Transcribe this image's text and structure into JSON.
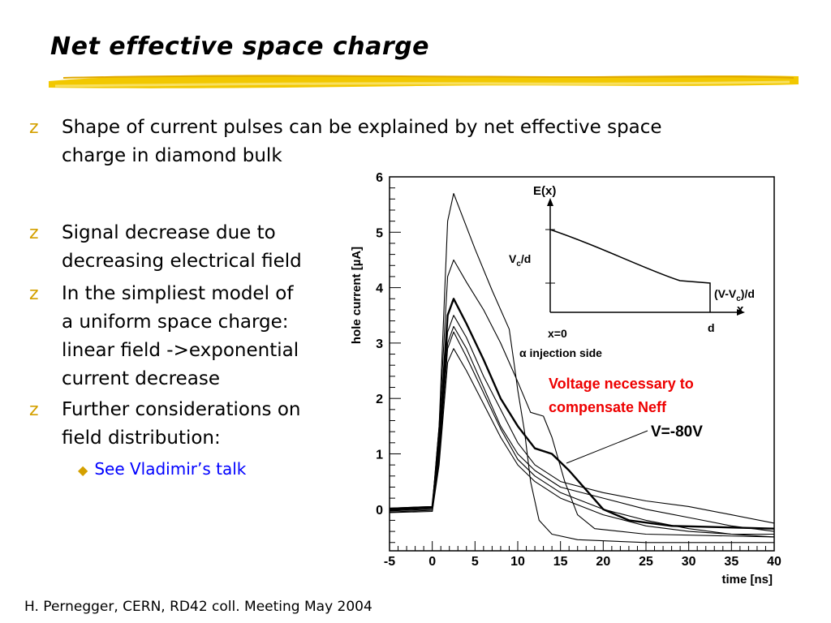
{
  "slide": {
    "title": "Net effective space charge",
    "footer": "H. Pernegger, CERN, RD42 coll. Meeting May 2004",
    "bullets": [
      {
        "lines": [
          "Shape of current pulses can be explained by net effective space",
          "charge in diamond bulk"
        ]
      },
      {
        "lines": [
          "Signal decrease due to",
          "decreasing electrical field"
        ]
      },
      {
        "lines": [
          "In the simpliest model of",
          "a uniform space charge:",
          "linear field ->exponential",
          "current decrease"
        ]
      },
      {
        "lines": [
          "Further considerations on",
          "field distribution:"
        ]
      }
    ],
    "sub_bullet": "See Vladimir’s talk",
    "bullet_glyph": "z",
    "accent_color": "#d4a000",
    "link_color": "#0000ff"
  },
  "chart_data": {
    "type": "line",
    "xlabel": "time [ns]",
    "ylabel": "hole current [µA]",
    "xlim": [
      -5,
      40
    ],
    "ylim": [
      -0.75,
      6
    ],
    "xticks": [
      "-5",
      "0",
      "5",
      "10",
      "15",
      "20",
      "25",
      "30",
      "35",
      "40"
    ],
    "yticks": [
      "0",
      "1",
      "2",
      "3",
      "4",
      "5",
      "6"
    ],
    "series": [
      {
        "values": [
          [
            -5,
            0.02
          ],
          [
            0,
            0.05
          ],
          [
            0.8,
            1.5
          ],
          [
            1.8,
            5.2
          ],
          [
            2.5,
            5.7
          ],
          [
            3.5,
            5.3
          ],
          [
            5,
            4.7
          ],
          [
            7,
            3.95
          ],
          [
            9,
            3.25
          ],
          [
            9.6,
            2.6
          ],
          [
            10,
            2.15
          ],
          [
            10.8,
            1.4
          ],
          [
            11.5,
            0.5
          ],
          [
            12.5,
            -0.2
          ],
          [
            14,
            -0.45
          ],
          [
            17,
            -0.55
          ],
          [
            25,
            -0.6
          ],
          [
            40,
            -0.6
          ]
        ]
      },
      {
        "values": [
          [
            -5,
            0.02
          ],
          [
            0,
            0.05
          ],
          [
            0.8,
            1.5
          ],
          [
            1.8,
            4.2
          ],
          [
            2.5,
            4.5
          ],
          [
            4,
            4.1
          ],
          [
            6,
            3.6
          ],
          [
            8,
            3.0
          ],
          [
            10,
            2.3
          ],
          [
            11.5,
            1.75
          ],
          [
            13,
            1.68
          ],
          [
            14,
            1.3
          ],
          [
            15.5,
            0.5
          ],
          [
            17,
            -0.1
          ],
          [
            19,
            -0.35
          ],
          [
            25,
            -0.45
          ],
          [
            40,
            -0.5
          ]
        ]
      },
      {
        "values": [
          [
            -5,
            0.0
          ],
          [
            0,
            0.03
          ],
          [
            0.8,
            1.2
          ],
          [
            1.8,
            3.5
          ],
          [
            2.5,
            3.8
          ],
          [
            4,
            3.35
          ],
          [
            6,
            2.7
          ],
          [
            8,
            2.0
          ],
          [
            10,
            1.5
          ],
          [
            12,
            1.1
          ],
          [
            14,
            1.0
          ],
          [
            16,
            0.7
          ],
          [
            18,
            0.35
          ],
          [
            20,
            0.0
          ],
          [
            23,
            -0.2
          ],
          [
            28,
            -0.3
          ],
          [
            40,
            -0.35
          ]
        ]
      },
      {
        "values": [
          [
            -5,
            -0.02
          ],
          [
            0,
            0.02
          ],
          [
            0.8,
            1.1
          ],
          [
            1.8,
            3.2
          ],
          [
            2.5,
            3.5
          ],
          [
            4,
            3.1
          ],
          [
            6,
            2.4
          ],
          [
            8,
            1.8
          ],
          [
            10,
            1.2
          ],
          [
            12,
            0.8
          ],
          [
            15,
            0.5
          ],
          [
            20,
            0.3
          ],
          [
            25,
            0.15
          ],
          [
            30,
            0.05
          ],
          [
            35,
            -0.1
          ],
          [
            40,
            -0.25
          ]
        ]
      },
      {
        "values": [
          [
            -5,
            -0.03
          ],
          [
            0,
            0.0
          ],
          [
            0.8,
            1.0
          ],
          [
            1.8,
            3.0
          ],
          [
            2.5,
            3.3
          ],
          [
            4,
            2.9
          ],
          [
            6,
            2.2
          ],
          [
            8,
            1.5
          ],
          [
            10,
            1.0
          ],
          [
            12,
            0.7
          ],
          [
            15,
            0.4
          ],
          [
            20,
            0.2
          ],
          [
            25,
            0.0
          ],
          [
            30,
            -0.15
          ],
          [
            35,
            -0.3
          ],
          [
            40,
            -0.4
          ]
        ]
      },
      {
        "values": [
          [
            -5,
            -0.05
          ],
          [
            0,
            -0.02
          ],
          [
            0.8,
            0.9
          ],
          [
            1.8,
            2.9
          ],
          [
            2.5,
            3.2
          ],
          [
            4,
            2.75
          ],
          [
            6,
            2.1
          ],
          [
            8,
            1.45
          ],
          [
            10,
            0.9
          ],
          [
            12,
            0.6
          ],
          [
            15,
            0.3
          ],
          [
            20,
            0.0
          ],
          [
            25,
            -0.2
          ],
          [
            30,
            -0.35
          ],
          [
            35,
            -0.45
          ],
          [
            40,
            -0.45
          ]
        ]
      },
      {
        "values": [
          [
            -5,
            -0.06
          ],
          [
            0,
            -0.04
          ],
          [
            0.8,
            0.8
          ],
          [
            1.8,
            2.65
          ],
          [
            2.5,
            2.9
          ],
          [
            4,
            2.5
          ],
          [
            6,
            1.9
          ],
          [
            8,
            1.3
          ],
          [
            10,
            0.8
          ],
          [
            12,
            0.5
          ],
          [
            15,
            0.2
          ],
          [
            20,
            -0.1
          ],
          [
            25,
            -0.3
          ],
          [
            30,
            -0.4
          ],
          [
            35,
            -0.45
          ],
          [
            40,
            -0.5
          ]
        ]
      }
    ],
    "emphasis_series": 2,
    "annotation_red": [
      "Voltage necessary to",
      "compensate Neff"
    ],
    "annotation_voltage": "V=-80V",
    "annotation_color": "#ee0000",
    "inset": {
      "ylabel": "E(x)",
      "xlabel": "x",
      "vc_label_pre": "V",
      "vc_label_sub": "c",
      "vc_label_post": "/d",
      "right_label_pre": "(V-V",
      "right_label_sub": "c",
      "right_label_post": ")/d",
      "x0_label": "x=0",
      "d_label": "d",
      "injection_label": "α injection side"
    }
  }
}
